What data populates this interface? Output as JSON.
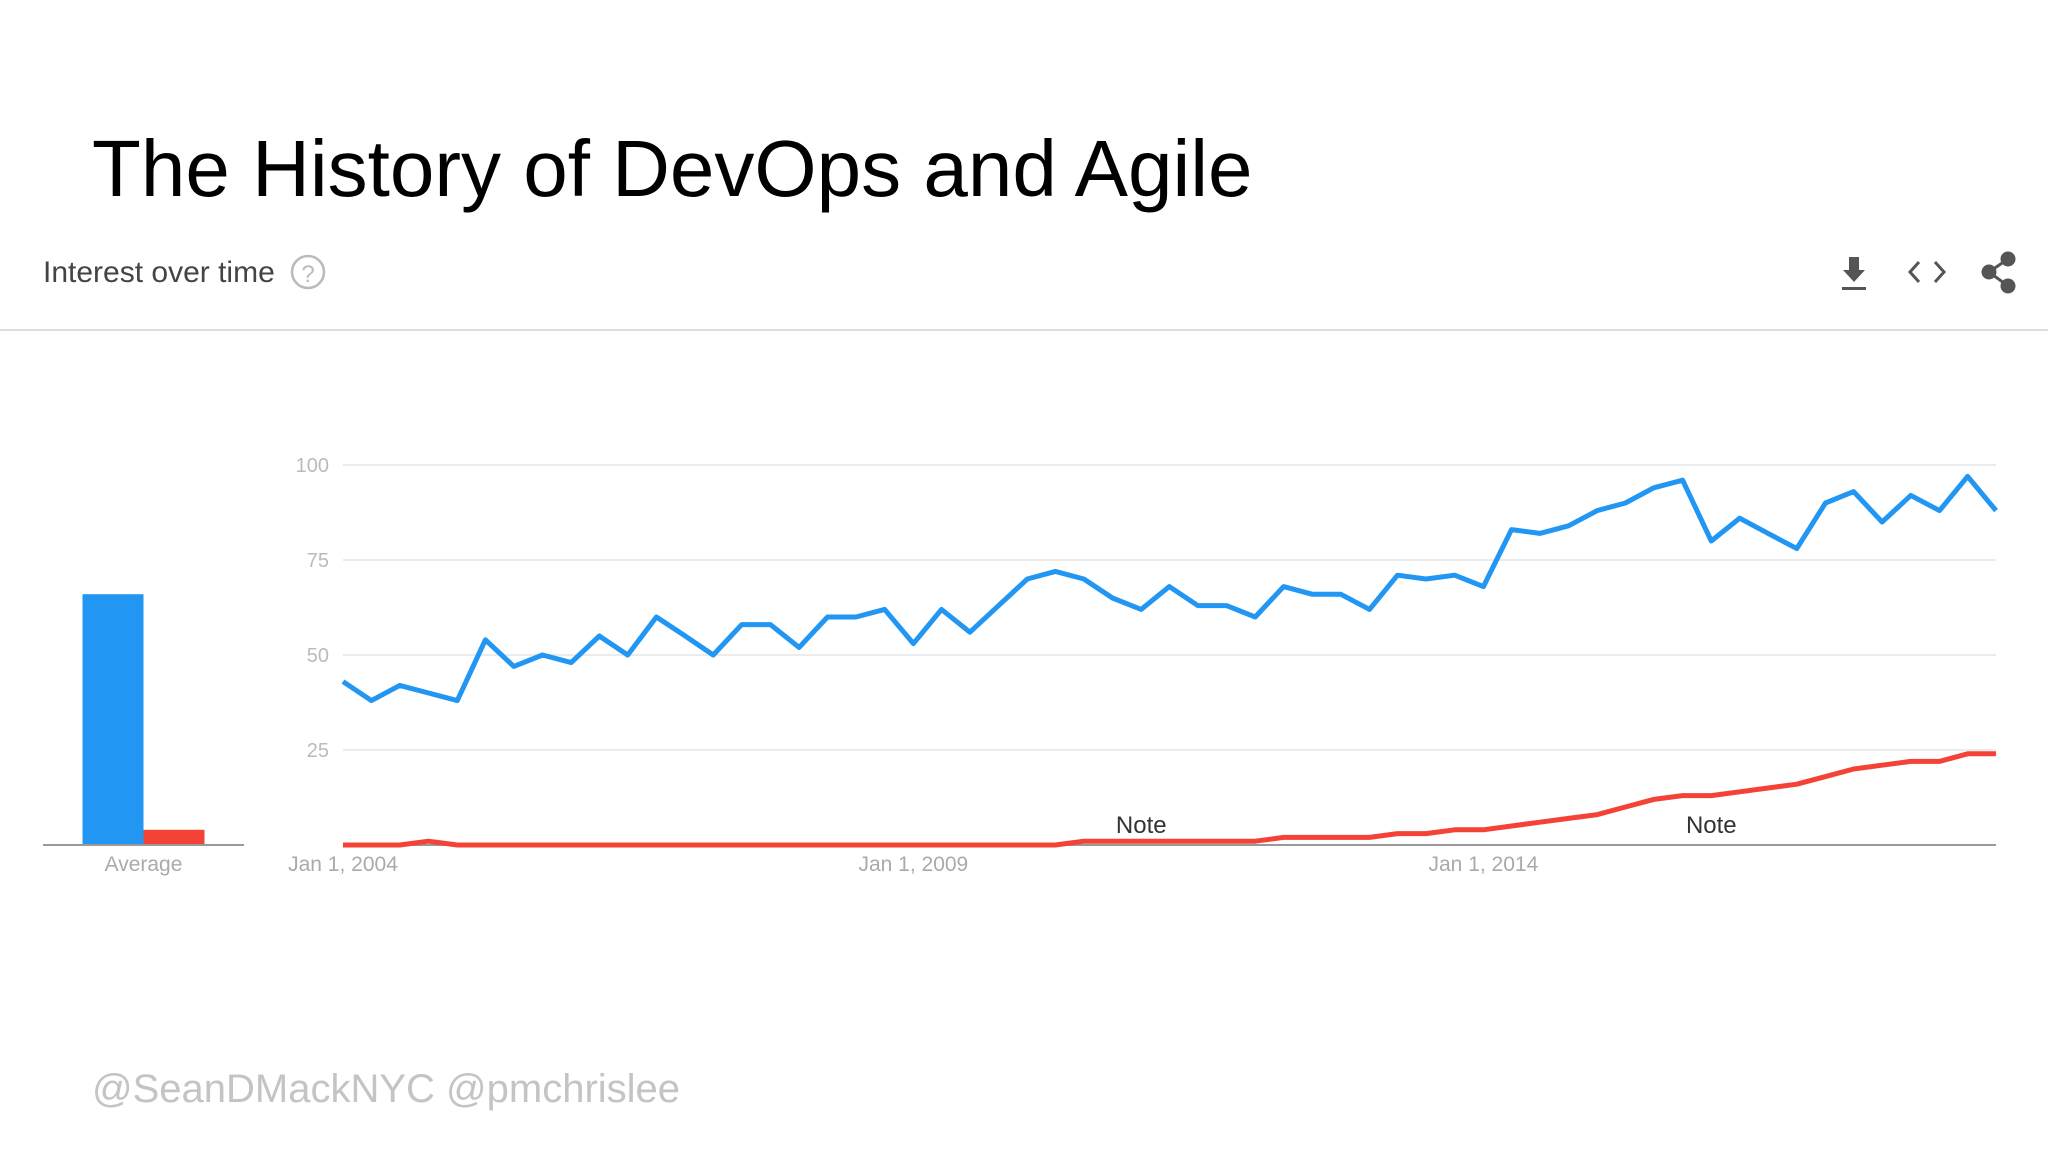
{
  "slide": {
    "title": "The History of DevOps and Agile",
    "footer": "@SeanDMackNYC  @pmchrislee"
  },
  "chart_data": [
    {
      "type": "bar",
      "categories": [
        "Average"
      ],
      "ylim": [
        0,
        100
      ],
      "series": [
        {
          "color": "#2196f3",
          "values": [
            66
          ]
        },
        {
          "color": "#f44336",
          "values": [
            4
          ]
        }
      ]
    },
    {
      "type": "line",
      "title": "Interest over time",
      "x": [
        "2004-01-01",
        "2004-04-01",
        "2004-07-01",
        "2004-10-01",
        "2005-01-01",
        "2005-04-01",
        "2005-07-01",
        "2005-10-01",
        "2006-01-01",
        "2006-04-01",
        "2006-07-01",
        "2006-10-01",
        "2007-01-01",
        "2007-04-01",
        "2007-07-01",
        "2007-10-01",
        "2008-01-01",
        "2008-04-01",
        "2008-07-01",
        "2008-10-01",
        "2009-01-01",
        "2009-04-01",
        "2009-07-01",
        "2009-10-01",
        "2010-01-01",
        "2010-04-01",
        "2010-07-01",
        "2010-10-01",
        "2011-01-01",
        "2011-04-01",
        "2011-07-01",
        "2011-10-01",
        "2012-01-01",
        "2012-04-01",
        "2012-07-01",
        "2012-10-01",
        "2013-01-01",
        "2013-04-01",
        "2013-07-01",
        "2013-10-01",
        "2014-01-01",
        "2014-04-01",
        "2014-07-01",
        "2014-10-01",
        "2015-01-01",
        "2015-04-01",
        "2015-07-01",
        "2015-10-01",
        "2016-01-01",
        "2016-04-01",
        "2016-07-01",
        "2016-10-01",
        "2017-01-01",
        "2017-04-01",
        "2017-07-01",
        "2017-10-01",
        "2018-01-01",
        "2018-04-01",
        "2018-07-01"
      ],
      "series": [
        {
          "color": "#2196f3",
          "values": [
            43,
            38,
            42,
            40,
            38,
            54,
            47,
            50,
            48,
            55,
            50,
            60,
            55,
            50,
            58,
            58,
            52,
            60,
            60,
            62,
            53,
            62,
            56,
            63,
            70,
            72,
            70,
            65,
            62,
            68,
            63,
            63,
            60,
            68,
            66,
            66,
            62,
            71,
            70,
            71,
            68,
            83,
            82,
            84,
            88,
            90,
            94,
            96,
            80,
            86,
            82,
            78,
            90,
            93,
            85,
            92,
            88,
            97,
            88
          ]
        },
        {
          "color": "#f44336",
          "values": [
            0,
            0,
            0,
            1,
            0,
            0,
            0,
            0,
            0,
            0,
            0,
            0,
            0,
            0,
            0,
            0,
            0,
            0,
            0,
            0,
            0,
            0,
            0,
            0,
            0,
            0,
            1,
            1,
            1,
            1,
            1,
            1,
            1,
            2,
            2,
            2,
            2,
            3,
            3,
            4,
            4,
            5,
            6,
            7,
            8,
            10,
            12,
            13,
            13,
            14,
            15,
            16,
            18,
            20,
            21,
            22,
            22,
            24,
            24
          ]
        }
      ],
      "xlim": [
        "2004-01-01",
        "2018-07-01"
      ],
      "xticks": [
        {
          "value": "2004-01-01",
          "label": "Jan 1, 2004"
        },
        {
          "value": "2009-01-01",
          "label": "Jan 1, 2009"
        },
        {
          "value": "2014-01-01",
          "label": "Jan 1, 2014"
        }
      ],
      "ylim": [
        0,
        100
      ],
      "yticks": [
        25,
        50,
        75,
        100
      ],
      "grid": true,
      "annotations": [
        {
          "text": "Note",
          "x": "2011-01-01"
        },
        {
          "text": "Note",
          "x": "2016-01-01"
        }
      ]
    }
  ]
}
